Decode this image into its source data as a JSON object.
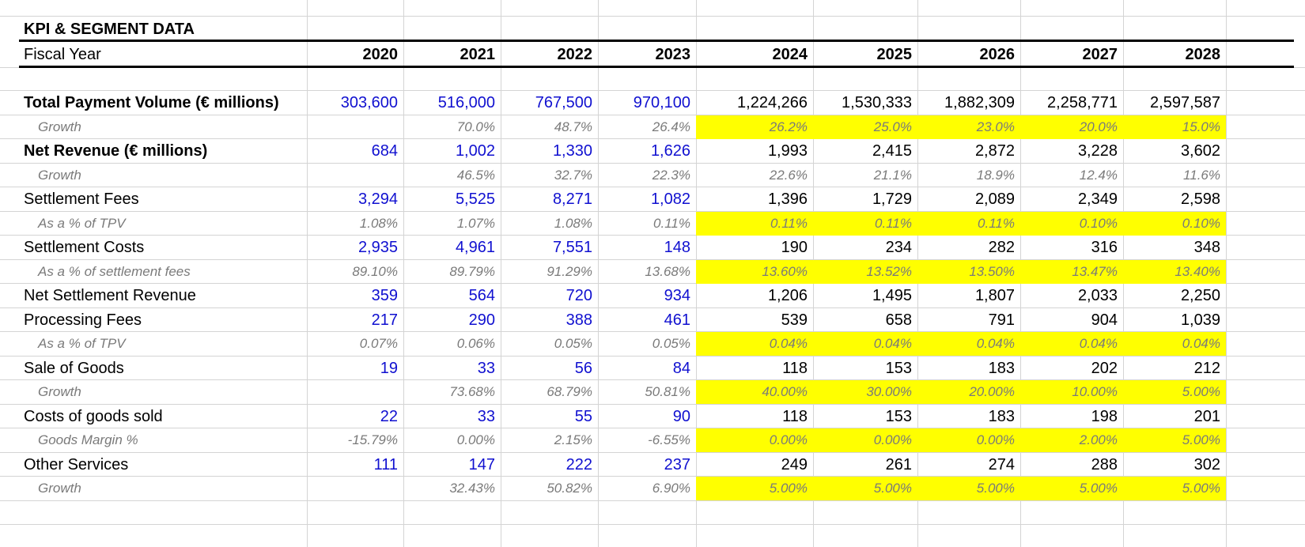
{
  "title": "KPI & SEGMENT DATA",
  "header": {
    "label": "Fiscal Year",
    "years": [
      "2020",
      "2021",
      "2022",
      "2023",
      "2024",
      "2025",
      "2026",
      "2027",
      "2028"
    ]
  },
  "colors": {
    "historical": "#1010d0",
    "highlight": "#ffff00",
    "sub": "#7a7a7a"
  },
  "rows": [
    {
      "label": "Total Payment Volume (€ millions)",
      "style": "bold",
      "values": [
        "303,600",
        "516,000",
        "767,500",
        "970,100",
        "1,224,266",
        "1,530,333",
        "1,882,309",
        "2,258,771",
        "2,597,587"
      ],
      "highlight": false
    },
    {
      "label": "Growth",
      "style": "sub",
      "values": [
        "",
        "70.0%",
        "48.7%",
        "26.4%",
        "26.2%",
        "25.0%",
        "23.0%",
        "20.0%",
        "15.0%"
      ],
      "highlight": true
    },
    {
      "label": "Net Revenue (€ millions)",
      "style": "bold",
      "values": [
        "684",
        "1,002",
        "1,330",
        "1,626",
        "1,993",
        "2,415",
        "2,872",
        "3,228",
        "3,602"
      ],
      "highlight": false
    },
    {
      "label": "Growth",
      "style": "sub",
      "values": [
        "",
        "46.5%",
        "32.7%",
        "22.3%",
        "22.6%",
        "21.1%",
        "18.9%",
        "12.4%",
        "11.6%"
      ],
      "highlight": false
    },
    {
      "label": "Settlement Fees",
      "style": "normal",
      "values": [
        "3,294",
        "5,525",
        "8,271",
        "1,082",
        "1,396",
        "1,729",
        "2,089",
        "2,349",
        "2,598"
      ],
      "highlight": false
    },
    {
      "label": "As a % of TPV",
      "style": "sub",
      "values": [
        "1.08%",
        "1.07%",
        "1.08%",
        "0.11%",
        "0.11%",
        "0.11%",
        "0.11%",
        "0.10%",
        "0.10%"
      ],
      "highlight": true
    },
    {
      "label": "Settlement Costs",
      "style": "normal",
      "values": [
        "2,935",
        "4,961",
        "7,551",
        "148",
        "190",
        "234",
        "282",
        "316",
        "348"
      ],
      "highlight": false
    },
    {
      "label": "As a % of settlement fees",
      "style": "sub",
      "values": [
        "89.10%",
        "89.79%",
        "91.29%",
        "13.68%",
        "13.60%",
        "13.52%",
        "13.50%",
        "13.47%",
        "13.40%"
      ],
      "highlight": true
    },
    {
      "label": "Net Settlement Revenue",
      "style": "normal",
      "values": [
        "359",
        "564",
        "720",
        "934",
        "1,206",
        "1,495",
        "1,807",
        "2,033",
        "2,250"
      ],
      "highlight": false
    },
    {
      "label": "Processing Fees",
      "style": "normal",
      "values": [
        "217",
        "290",
        "388",
        "461",
        "539",
        "658",
        "791",
        "904",
        "1,039"
      ],
      "highlight": false
    },
    {
      "label": "As a % of TPV",
      "style": "sub",
      "values": [
        "0.07%",
        "0.06%",
        "0.05%",
        "0.05%",
        "0.04%",
        "0.04%",
        "0.04%",
        "0.04%",
        "0.04%"
      ],
      "highlight": true
    },
    {
      "label": "Sale of Goods",
      "style": "normal",
      "values": [
        "19",
        "33",
        "56",
        "84",
        "118",
        "153",
        "183",
        "202",
        "212"
      ],
      "highlight": false
    },
    {
      "label": "Growth",
      "style": "sub",
      "values": [
        "",
        "73.68%",
        "68.79%",
        "50.81%",
        "40.00%",
        "30.00%",
        "20.00%",
        "10.00%",
        "5.00%"
      ],
      "highlight": true
    },
    {
      "label": "Costs of goods sold",
      "style": "normal",
      "values": [
        "22",
        "33",
        "55",
        "90",
        "118",
        "153",
        "183",
        "198",
        "201"
      ],
      "highlight": false
    },
    {
      "label": "Goods Margin %",
      "style": "sub",
      "values": [
        "-15.79%",
        "0.00%",
        "2.15%",
        "-6.55%",
        "0.00%",
        "0.00%",
        "0.00%",
        "2.00%",
        "5.00%"
      ],
      "highlight": true
    },
    {
      "label": "Other Services",
      "style": "normal",
      "values": [
        "111",
        "147",
        "222",
        "237",
        "249",
        "261",
        "274",
        "288",
        "302"
      ],
      "highlight": false
    },
    {
      "label": "Growth",
      "style": "sub",
      "values": [
        "",
        "32.43%",
        "50.82%",
        "6.90%",
        "5.00%",
        "5.00%",
        "5.00%",
        "5.00%",
        "5.00%"
      ],
      "highlight": true
    }
  ]
}
